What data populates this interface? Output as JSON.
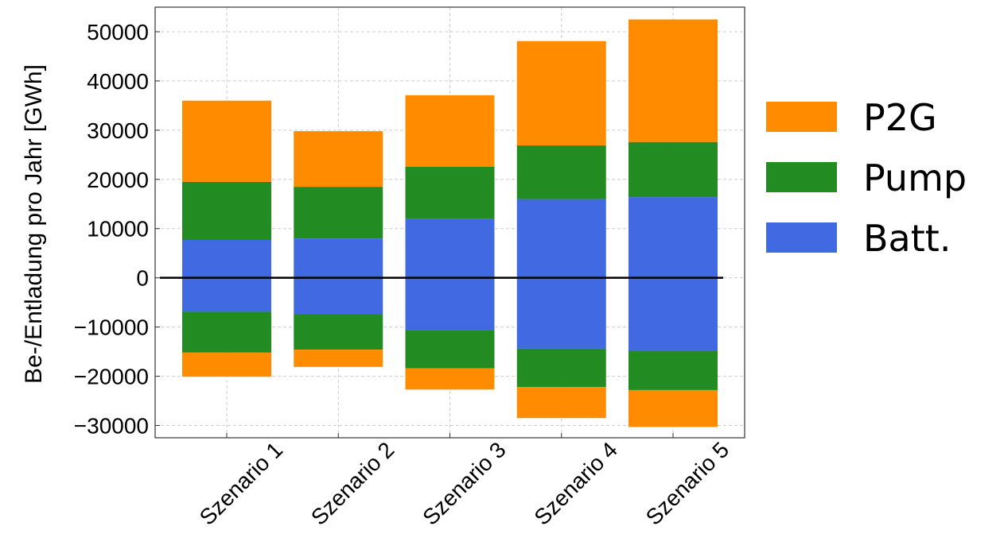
{
  "chart_data": {
    "type": "bar",
    "stacked": true,
    "title": "",
    "xlabel": "",
    "ylabel": "Be-/Entladung pro Jahr [GWh]",
    "categories": [
      "Szenario 1",
      "Szenario 2",
      "Szenario 3",
      "Szenario 4",
      "Szenario 5"
    ],
    "ylim": [
      -32500,
      55000
    ],
    "yticks": [
      -30000,
      -20000,
      -10000,
      0,
      10000,
      20000,
      30000,
      40000,
      50000
    ],
    "ytick_labels": [
      "−30000",
      "−20000",
      "−10000",
      "0",
      "10000",
      "20000",
      "30000",
      "40000",
      "50000"
    ],
    "grid": true,
    "zero_line": true,
    "legend_position": "right",
    "series": [
      {
        "name": "Batt.",
        "color": "#4169E1",
        "positive": [
          7700,
          8000,
          12000,
          16000,
          16400
        ],
        "negative": [
          -6900,
          -7400,
          -10700,
          -14400,
          -14900
        ]
      },
      {
        "name": "Pump",
        "color": "#228B22",
        "positive": [
          11800,
          10500,
          10600,
          10900,
          11200
        ],
        "negative": [
          -8300,
          -7200,
          -7700,
          -7800,
          -7900
        ]
      },
      {
        "name": "P2G",
        "color": "#FF8C00",
        "positive": [
          16500,
          11300,
          14500,
          21200,
          24900
        ],
        "negative": [
          -4900,
          -3500,
          -4300,
          -6300,
          -7500
        ]
      }
    ],
    "legend_order": [
      "P2G",
      "Pump",
      "Batt."
    ]
  }
}
